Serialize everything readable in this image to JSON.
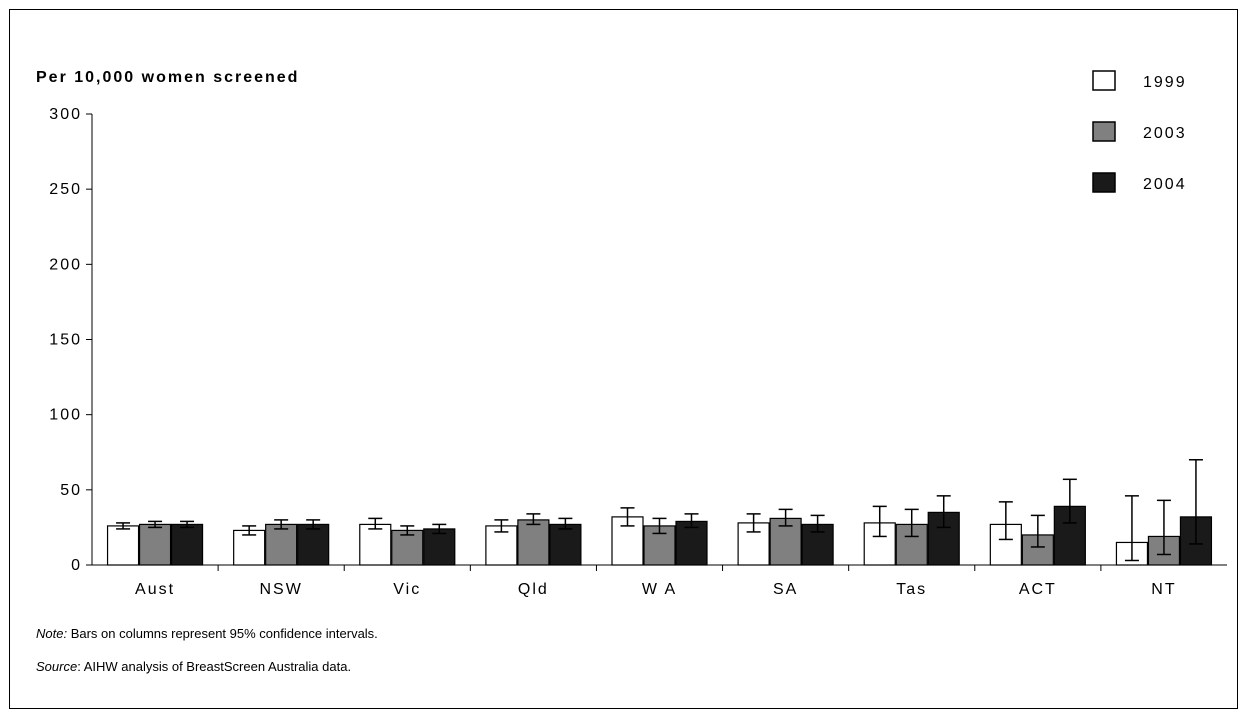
{
  "chart_data": {
    "type": "bar",
    "ylabel": "Per 10,000 women screened",
    "xlabel": "",
    "ylim": [
      0,
      300
    ],
    "yticks": [
      0,
      50,
      100,
      150,
      200,
      250,
      300
    ],
    "categories": [
      "Aust",
      "NSW",
      "Vic",
      "Qld",
      "W A",
      "SA",
      "Tas",
      "ACT",
      "NT"
    ],
    "series": [
      {
        "name": "1999",
        "color": "#ffffff",
        "values": [
          26,
          23,
          27,
          26,
          32,
          28,
          28,
          27,
          15
        ],
        "ci_low": [
          24,
          20,
          24,
          22,
          26,
          22,
          19,
          17,
          3
        ],
        "ci_high": [
          28,
          26,
          31,
          30,
          38,
          34,
          39,
          42,
          46
        ]
      },
      {
        "name": "2003",
        "color": "#808080",
        "values": [
          27,
          27,
          23,
          30,
          26,
          31,
          27,
          20,
          19
        ],
        "ci_low": [
          25,
          24,
          20,
          27,
          21,
          26,
          19,
          12,
          7
        ],
        "ci_high": [
          29,
          30,
          26,
          34,
          31,
          37,
          37,
          33,
          43
        ]
      },
      {
        "name": "2004",
        "color": "#1a1a1a",
        "values": [
          27,
          27,
          24,
          27,
          29,
          27,
          35,
          39,
          32
        ],
        "ci_low": [
          25,
          24,
          21,
          24,
          25,
          22,
          25,
          28,
          14
        ],
        "ci_high": [
          29,
          30,
          27,
          31,
          34,
          33,
          46,
          57,
          70
        ]
      }
    ],
    "legend_position": "top-right",
    "grid": false
  },
  "notes": {
    "note_label": "Note:",
    "note_text": " Bars on columns represent 95% confidence intervals.",
    "source_label": "Source",
    "source_text": ": AIHW analysis of BreastScreen Australia data."
  }
}
